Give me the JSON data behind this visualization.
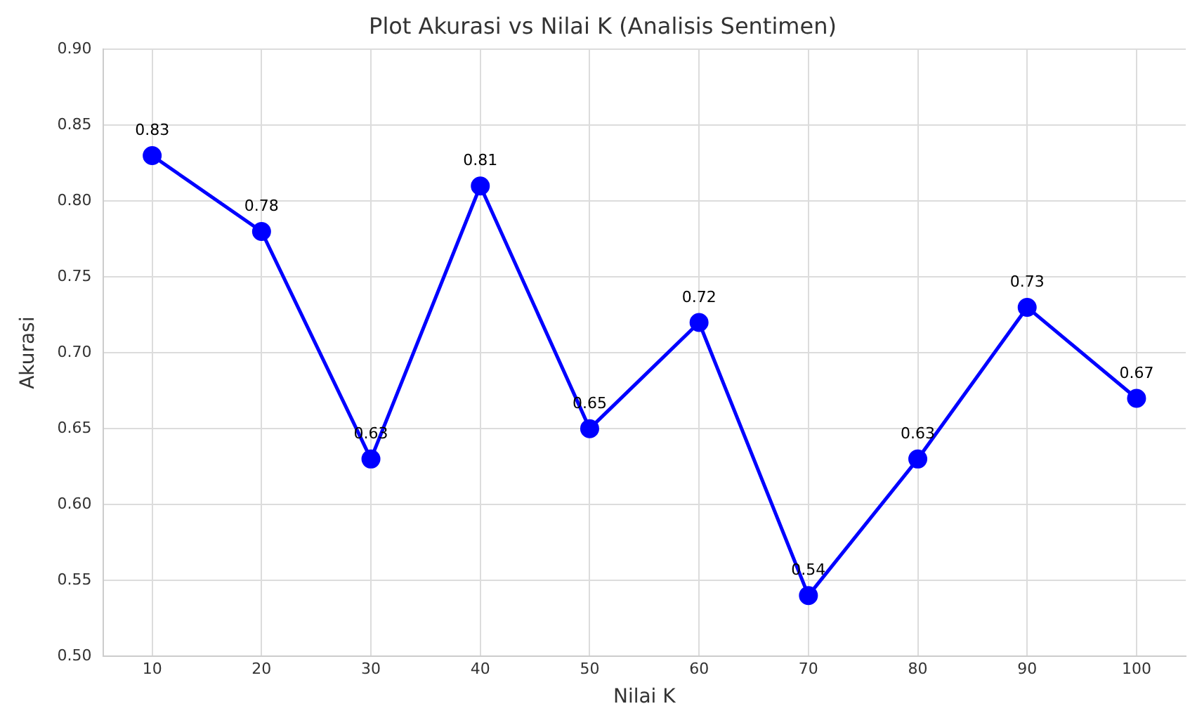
{
  "chart_data": {
    "type": "line",
    "title": "Plot Akurasi vs Nilai K (Analisis Sentimen)",
    "xlabel": "Nilai K",
    "ylabel": "Akurasi",
    "x": [
      10,
      20,
      30,
      40,
      50,
      60,
      70,
      80,
      90,
      100
    ],
    "series": [
      {
        "color": "#0000ff",
        "values": [
          0.83,
          0.78,
          0.63,
          0.81,
          0.65,
          0.72,
          0.54,
          0.63,
          0.73,
          0.67
        ]
      }
    ],
    "xlim": [
      5.5,
      104.5
    ],
    "xticks": [
      10,
      20,
      30,
      40,
      50,
      60,
      70,
      80,
      90,
      100
    ],
    "ylim": [
      0.5,
      0.9
    ],
    "yticks": [
      {
        "value": 0.5,
        "label": "0.50"
      },
      {
        "value": 0.55,
        "label": "0.55"
      },
      {
        "value": 0.6,
        "label": "0.60"
      },
      {
        "value": 0.65,
        "label": "0.65"
      },
      {
        "value": 0.7,
        "label": "0.70"
      },
      {
        "value": 0.75,
        "label": "0.75"
      },
      {
        "value": 0.8,
        "label": "0.80"
      },
      {
        "value": 0.85,
        "label": "0.85"
      },
      {
        "value": 0.9,
        "label": "0.90"
      }
    ],
    "grid": true,
    "legend": false,
    "marker": "circle",
    "line_style": "solid",
    "data_labels": true
  }
}
